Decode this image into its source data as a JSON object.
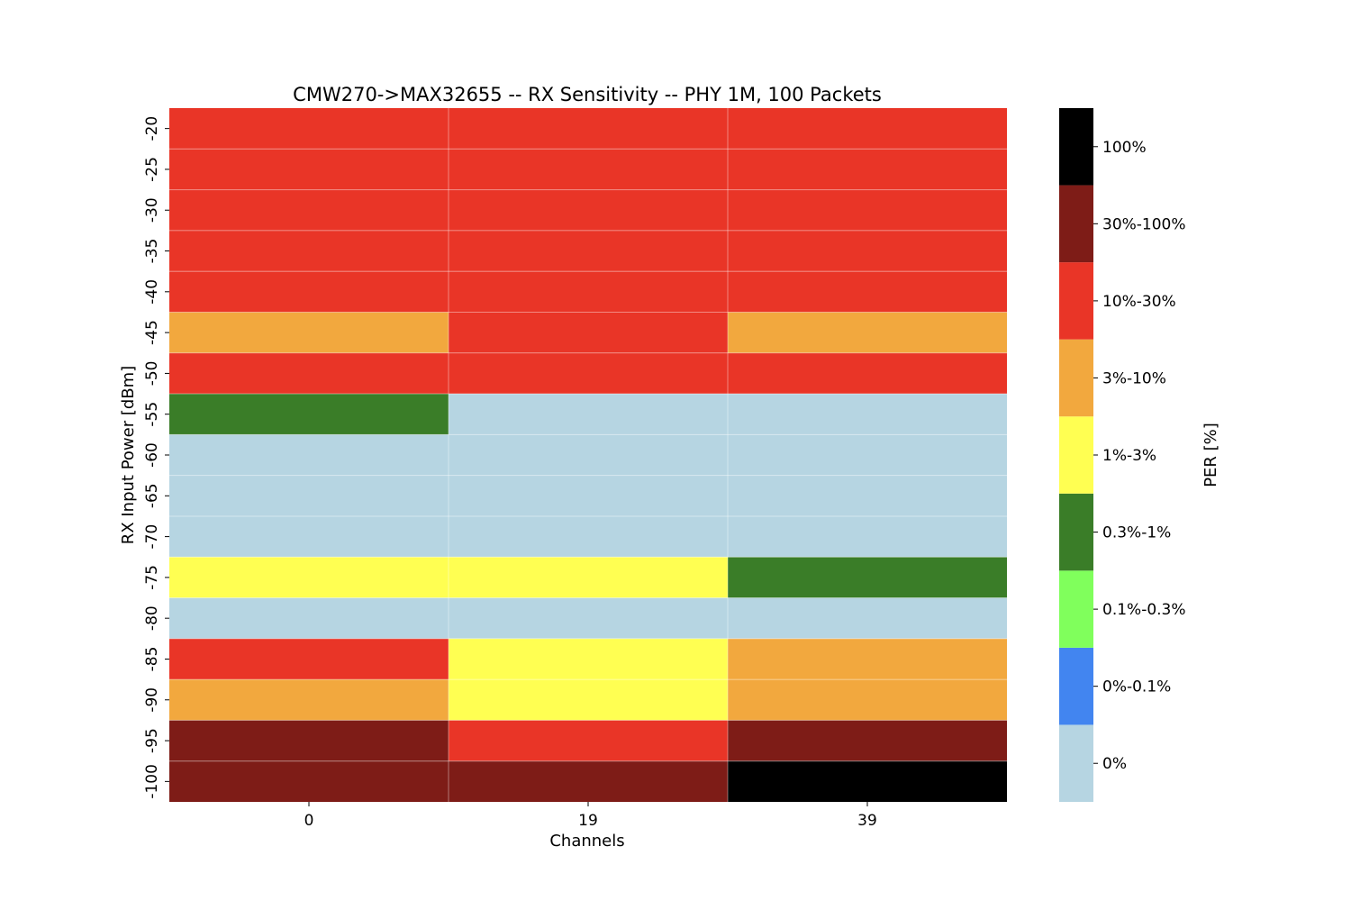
{
  "chart_data": {
    "type": "heatmap",
    "title": "CMW270->MAX32655 -- RX Sensitivity -- PHY 1M, 100 Packets",
    "xlabel": "Channels",
    "ylabel": "RX Input Power [dBm]",
    "colorbar_label": "PER [%]",
    "x_categories": [
      "0",
      "19",
      "39"
    ],
    "y_categories": [
      "-20",
      "-25",
      "-30",
      "-35",
      "-40",
      "-45",
      "-50",
      "-55",
      "-60",
      "-65",
      "-70",
      "-75",
      "-80",
      "-85",
      "-90",
      "-95",
      "-100"
    ],
    "bins": [
      {
        "label": "0%",
        "color": "#b6d5e2"
      },
      {
        "label": "0%-0.1%",
        "color": "#4285f0"
      },
      {
        "label": "0.1%-0.3%",
        "color": "#80ff5c"
      },
      {
        "label": "0.3%-1%",
        "color": "#3a7d28"
      },
      {
        "label": "1%-3%",
        "color": "#ffff52"
      },
      {
        "label": "3%-10%",
        "color": "#f2a83e"
      },
      {
        "label": "10%-30%",
        "color": "#e93527"
      },
      {
        "label": "30%-100%",
        "color": "#7e1c17"
      },
      {
        "label": "100%",
        "color": "#000000"
      }
    ],
    "values_bin_index": [
      [
        6,
        6,
        6
      ],
      [
        6,
        6,
        6
      ],
      [
        6,
        6,
        6
      ],
      [
        6,
        6,
        6
      ],
      [
        6,
        6,
        6
      ],
      [
        5,
        6,
        5
      ],
      [
        6,
        6,
        6
      ],
      [
        3,
        0,
        0
      ],
      [
        0,
        0,
        0
      ],
      [
        0,
        0,
        0
      ],
      [
        0,
        0,
        0
      ],
      [
        4,
        4,
        3
      ],
      [
        0,
        0,
        0
      ],
      [
        6,
        4,
        5
      ],
      [
        5,
        4,
        5
      ],
      [
        7,
        6,
        7
      ],
      [
        7,
        7,
        8
      ]
    ],
    "grid": true,
    "legend": "colorbar-right"
  }
}
